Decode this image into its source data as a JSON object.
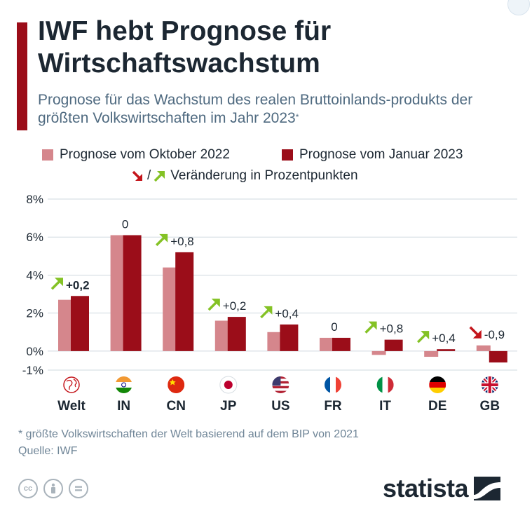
{
  "title": "IWF hebt Prognose für Wirtschaftswachstum",
  "subtitle": "Prognose für das Wachstum des realen Bruttoinlands-produkts der größten Volkswirtschaften im Jahr 2023",
  "subtitle_marker": "*",
  "legend": {
    "series1": "Prognose vom Oktober 2022",
    "series2": "Prognose vom Januar 2023",
    "separator": "/",
    "change_label": "Veränderung in Prozentpunkten"
  },
  "footnote": "* größte Volkswirtschaften der Welt basierend auf dem BIP von 2021",
  "source": "Quelle: IWF",
  "brand": "statista",
  "colors": {
    "series1": "#d5868c",
    "series2": "#9b0d19",
    "up_arrow": "#84c225",
    "down_arrow": "#c4161c",
    "grid": "#cfd8df",
    "text": "#1c2732"
  },
  "chart_data": {
    "type": "bar",
    "categories": [
      "Welt",
      "IN",
      "CN",
      "JP",
      "US",
      "FR",
      "IT",
      "DE",
      "GB"
    ],
    "series": [
      {
        "name": "Prognose vom Oktober 2022",
        "values": [
          2.7,
          6.1,
          4.4,
          1.6,
          1.0,
          0.7,
          -0.2,
          -0.3,
          0.3
        ]
      },
      {
        "name": "Prognose vom Januar 2023",
        "values": [
          2.9,
          6.1,
          5.2,
          1.8,
          1.4,
          0.7,
          0.6,
          0.1,
          -0.6
        ]
      }
    ],
    "changes": [
      "+0,2",
      "0",
      "+0,8",
      "+0,2",
      "+0,4",
      "0",
      "+0,8",
      "+0,4",
      "-0,9"
    ],
    "change_direction": [
      "up",
      "none",
      "up",
      "up",
      "up",
      "none",
      "up",
      "up",
      "down"
    ],
    "flag_icons": [
      "globe-icon",
      "flag-india-icon",
      "flag-china-icon",
      "flag-japan-icon",
      "flag-usa-icon",
      "flag-france-icon",
      "flag-italy-icon",
      "flag-germany-icon",
      "flag-uk-icon"
    ],
    "yticks": [
      "8%",
      "6%",
      "4%",
      "2%",
      "0%",
      "-1%"
    ],
    "ytick_values": [
      8,
      6,
      4,
      2,
      0,
      -1
    ],
    "ylim": [
      -1,
      8
    ],
    "grid": true,
    "legend_position": "top"
  }
}
